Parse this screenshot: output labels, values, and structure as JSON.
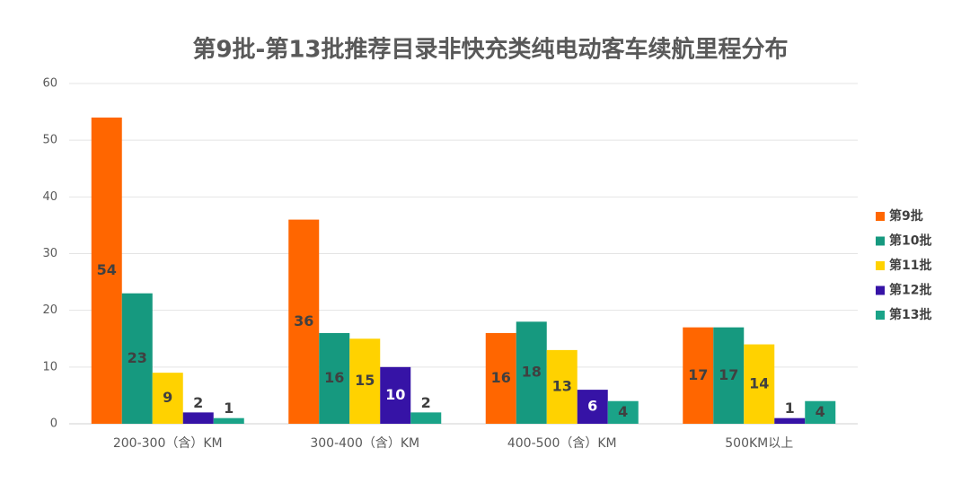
{
  "chart_data": {
    "type": "bar",
    "title": "第9批-第13批推荐目录非快充类纯电动客车续航里程分布",
    "categories": [
      "200-300（含）KM",
      "300-400（含）KM",
      "400-500（含）KM",
      "500KM以上"
    ],
    "series": [
      {
        "name": "第9批",
        "color": "#ff6600",
        "values": [
          54,
          36,
          16,
          17
        ]
      },
      {
        "name": "第10批",
        "color": "#16997f",
        "values": [
          23,
          16,
          18,
          17
        ]
      },
      {
        "name": "第11批",
        "color": "#ffd200",
        "values": [
          9,
          15,
          13,
          14
        ]
      },
      {
        "name": "第12批",
        "color": "#3613a6",
        "values": [
          2,
          10,
          6,
          1
        ]
      },
      {
        "name": "第13批",
        "color": "#1aa388",
        "values": [
          1,
          2,
          4,
          4
        ]
      }
    ],
    "ylim": [
      0,
      60
    ],
    "yticks": [
      0,
      10,
      20,
      30,
      40,
      50,
      60
    ],
    "grid": true,
    "legend": "right"
  }
}
